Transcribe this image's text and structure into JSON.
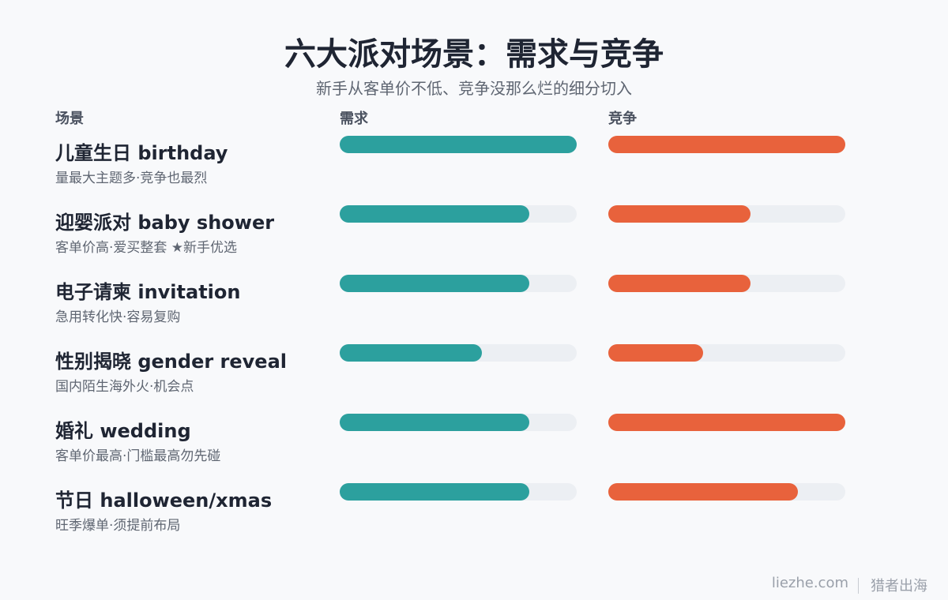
{
  "chart_data": {
    "type": "bar",
    "title": "六大派对场景：需求与竞争",
    "subtitle": "新手从客单价不低、竞争没那么烂的细分切入",
    "category_label": "场景",
    "categories": [
      "儿童生日 birthday",
      "迎婴派对 baby shower",
      "电子请柬 invitation",
      "性别揭晓 gender reveal",
      "婚礼 wedding",
      "节日 halloween/xmas"
    ],
    "notes": [
      "量最大主题多·竞争也最烈",
      "客单价高·爱买整套 ★新手优选",
      "急用转化快·容易复购",
      "国内陌生海外火·机会点",
      "客单价最高·门槛最高勿先碰",
      "旺季爆单·须提前布局"
    ],
    "series": [
      {
        "name": "需求",
        "color": "#2ca09e",
        "values": [
          5,
          4,
          4,
          3,
          4,
          4
        ]
      },
      {
        "name": "竞争",
        "color": "#e8623c",
        "values": [
          5,
          3,
          3,
          2,
          5,
          4
        ]
      }
    ],
    "xlim": [
      0,
      5
    ],
    "track_color": "#eceff3",
    "footer": {
      "site": "liezhe.com",
      "brand": "猎者出海"
    }
  }
}
